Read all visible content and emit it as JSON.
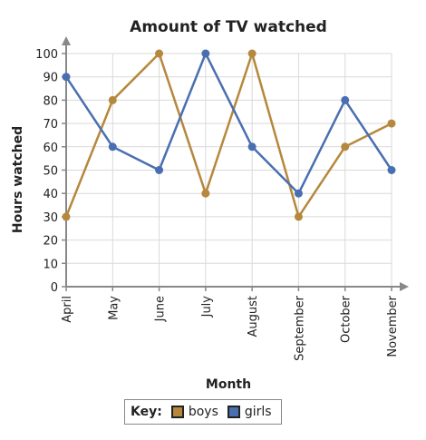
{
  "chart_data": {
    "type": "line",
    "title": "Amount of TV watched",
    "xlabel": "Month",
    "ylabel": "Hours watched",
    "categories": [
      "April",
      "May",
      "June",
      "July",
      "August",
      "September",
      "October",
      "November"
    ],
    "ylim": [
      0,
      100
    ],
    "yticks": [
      "0",
      "10",
      "20",
      "30",
      "40",
      "50",
      "60",
      "70",
      "80",
      "90",
      "100"
    ],
    "grid": true,
    "legend_title": "Key:",
    "legend_placement": "bottom",
    "series": [
      {
        "name": "boys",
        "color": "#b5883d",
        "values": [
          30,
          80,
          100,
          40,
          100,
          30,
          60,
          70
        ]
      },
      {
        "name": "girls",
        "color": "#4a6fb0",
        "values": [
          90,
          60,
          50,
          100,
          60,
          40,
          80,
          50
        ]
      }
    ]
  }
}
